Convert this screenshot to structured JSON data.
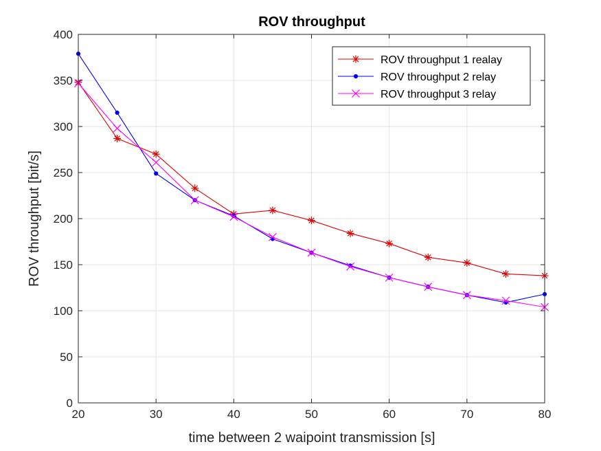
{
  "chart_data": {
    "type": "line",
    "title": "ROV throughput",
    "xlabel": "time between 2 waipoint transmission [s]",
    "ylabel": "ROV throughput [bit/s]",
    "xlim": [
      20,
      80
    ],
    "ylim": [
      0,
      400
    ],
    "xticks": [
      20,
      30,
      40,
      50,
      60,
      70,
      80
    ],
    "yticks": [
      0,
      50,
      100,
      150,
      200,
      250,
      300,
      350,
      400
    ],
    "grid": true,
    "legend_position": "top-right",
    "x": [
      20,
      25,
      30,
      35,
      40,
      45,
      50,
      55,
      60,
      65,
      70,
      75,
      80
    ],
    "series": [
      {
        "name": "ROV throughput 1 realay",
        "color": "#e00000",
        "marker": "asterisk",
        "values": [
          348,
          287,
          270,
          233,
          205,
          209,
          198,
          184,
          173,
          158,
          152,
          140,
          138
        ]
      },
      {
        "name": "ROV throughput 2 relay",
        "color": "#0000ff",
        "marker": "dot",
        "values": [
          379,
          315,
          249,
          220,
          203,
          178,
          163,
          149,
          136,
          126,
          117,
          109,
          118
        ]
      },
      {
        "name": "ROV throughput 3 relay",
        "color": "#ff00ff",
        "marker": "x",
        "values": [
          347,
          298,
          261,
          220,
          202,
          180,
          163,
          148,
          136,
          126,
          117,
          111,
          104
        ]
      }
    ]
  }
}
